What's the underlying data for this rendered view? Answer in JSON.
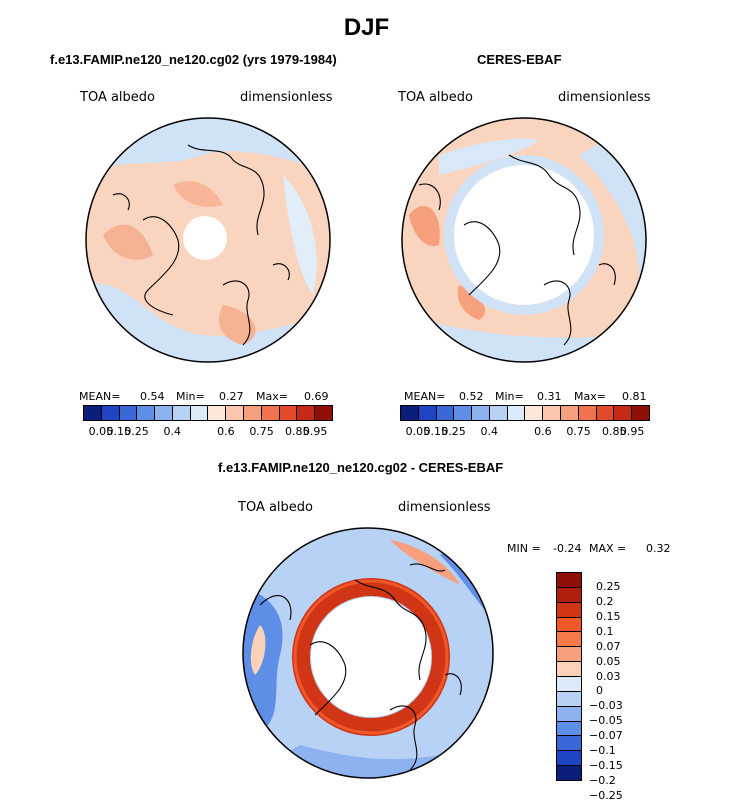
{
  "figure_title": "DJF",
  "panels": [
    {
      "subtitle": "f.e13.FAMIP.ne120_ne120.cg02 (yrs 1979-1984)",
      "left_label": "TOA albedo",
      "right_label": "dimensionless",
      "mean_label": "MEAN=",
      "mean_value": "0.54",
      "min_label": "Min=",
      "min_value": "0.27",
      "max_label": "Max=",
      "max_value": "0.69"
    },
    {
      "subtitle": "CERES-EBAF",
      "left_label": "TOA albedo",
      "right_label": "dimensionless",
      "mean_label": "MEAN=",
      "mean_value": "0.52",
      "min_label": "Min=",
      "min_value": "0.31",
      "max_label": "Max=",
      "max_value": "0.81"
    }
  ],
  "colorbar_top": {
    "colors": [
      "#0a1f7a",
      "#1f45c4",
      "#3a68d8",
      "#5f8ee6",
      "#8cb2ef",
      "#b8d2f5",
      "#dcebfa",
      "#fde7d9",
      "#fbc8ad",
      "#f6a07e",
      "#f0734f",
      "#e24a2a",
      "#c42a16",
      "#8e0f07"
    ],
    "ticks": [
      "0.05",
      "0.15",
      "0.25",
      "0.4",
      "0.6",
      "0.75",
      "0.85",
      "0.95"
    ]
  },
  "diff_panel": {
    "subtitle": "f.e13.FAMIP.ne120_ne120.cg02 - CERES-EBAF",
    "left_label": "TOA albedo",
    "right_label": "dimensionless",
    "min_label": "MIN =",
    "min_value": "-0.24",
    "max_label": "MAX =",
    "max_value": "0.32"
  },
  "colorbar_diff": {
    "colors": [
      "#8e0f07",
      "#b01e0d",
      "#d03515",
      "#f0582a",
      "#f47a4a",
      "#f6a07e",
      "#fbd2b8",
      "#dcebfa",
      "#b8d2f5",
      "#8cb2ef",
      "#5f8ee6",
      "#3a68d8",
      "#1f45c4",
      "#0a1f7a"
    ],
    "ticks": [
      "0.25",
      "0.2",
      "0.15",
      "0.1",
      "0.07",
      "0.05",
      "0.03",
      "0",
      "−0.03",
      "−0.05",
      "−0.07",
      "−0.1",
      "−0.15",
      "−0.2",
      "−0.25"
    ]
  }
}
